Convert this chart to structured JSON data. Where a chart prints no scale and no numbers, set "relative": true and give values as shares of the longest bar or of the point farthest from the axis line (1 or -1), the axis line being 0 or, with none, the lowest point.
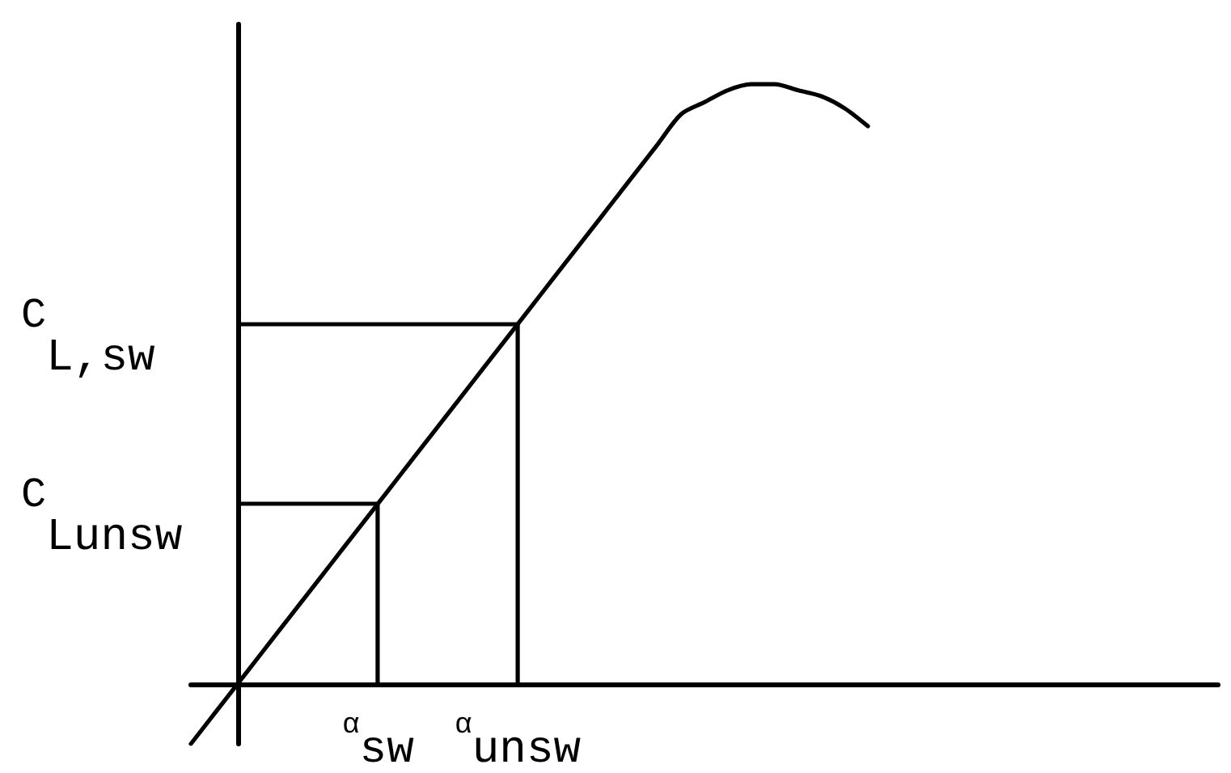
{
  "chart_data": {
    "type": "line",
    "relative": true,
    "marker": "none",
    "line_style": "solid",
    "categories": [
      null,
      null,
      null,
      null,
      null,
      null,
      null,
      null,
      "α$_{sw}$",
      null,
      null,
      null,
      null,
      null,
      "α$_{unsw}$",
      null,
      null,
      null,
      null,
      null,
      null,
      null,
      null,
      null,
      null,
      null,
      null,
      null,
      null,
      null,
      null,
      null,
      null,
      null,
      null,
      null,
      null,
      null,
      null,
      null,
      null,
      null,
      null,
      null,
      null
    ],
    "series": [
      {
        "color": "#000000",
        "values": [
          -0.1,
          -0.05,
          0,
          0.05,
          0.1,
          0.15,
          0.2,
          0.25,
          0.3,
          0.35,
          0.4,
          0.45,
          0.5,
          0.55,
          0.6,
          0.65,
          0.7,
          0.75,
          0.8,
          0.85,
          0.9,
          0.95,
          0.97,
          0.99,
          1,
          1,
          0.99,
          0.98,
          0.96,
          0.93,
          null,
          null,
          null,
          null,
          null,
          null,
          null,
          null,
          null,
          null,
          null,
          null,
          null,
          null,
          null
        ]
      },
      {
        "type": "bar",
        "color": "#000000",
        "values": [
          null,
          null,
          null,
          null,
          null,
          null,
          null,
          null,
          0.3,
          null,
          null,
          null,
          null,
          null,
          0.6,
          null,
          null,
          null,
          null,
          null,
          null,
          null,
          null,
          null,
          null,
          null,
          null,
          null,
          null,
          null,
          null,
          null,
          null,
          null,
          null,
          null,
          null,
          null,
          null,
          null,
          null,
          null,
          null,
          null,
          null
        ]
      }
    ],
    "ref_lines": [
      {
        "axis": "y",
        "value": 0.6,
        "label": "C$_{L,sw}$",
        "color": "#000000"
      },
      {
        "axis": "y",
        "value": 0.3,
        "label": "C$_{Lunsw}$",
        "color": "#000000"
      }
    ]
  }
}
